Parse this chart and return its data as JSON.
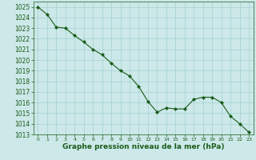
{
  "x": [
    0,
    1,
    2,
    3,
    4,
    5,
    6,
    7,
    8,
    9,
    10,
    11,
    12,
    13,
    14,
    15,
    16,
    17,
    18,
    19,
    20,
    21,
    22,
    23
  ],
  "y": [
    1025.0,
    1024.3,
    1023.1,
    1023.0,
    1022.3,
    1021.7,
    1021.0,
    1020.5,
    1019.7,
    1019.0,
    1018.5,
    1017.5,
    1016.1,
    1015.1,
    1015.5,
    1015.4,
    1015.4,
    1016.3,
    1016.5,
    1016.5,
    1016.0,
    1014.7,
    1014.0,
    1013.2
  ],
  "ylim": [
    1013,
    1025.5
  ],
  "xlim": [
    -0.5,
    23.5
  ],
  "yticks": [
    1013,
    1014,
    1015,
    1016,
    1017,
    1018,
    1019,
    1020,
    1021,
    1022,
    1023,
    1024,
    1025
  ],
  "xticks": [
    0,
    1,
    2,
    3,
    4,
    5,
    6,
    7,
    8,
    9,
    10,
    11,
    12,
    13,
    14,
    15,
    16,
    17,
    18,
    19,
    20,
    21,
    22,
    23
  ],
  "line_color": "#1a5c1a",
  "marker": "D",
  "marker_size": 2.0,
  "bg_color": "#cce8e8",
  "grid_color": "#99cccc",
  "xlabel": "Graphe pression niveau de la mer (hPa)",
  "xlabel_color": "#1a5c1a",
  "tick_color": "#1a5c1a",
  "ytick_fontsize": 5.5,
  "xtick_fontsize": 4.5,
  "xlabel_fontsize": 6.5
}
